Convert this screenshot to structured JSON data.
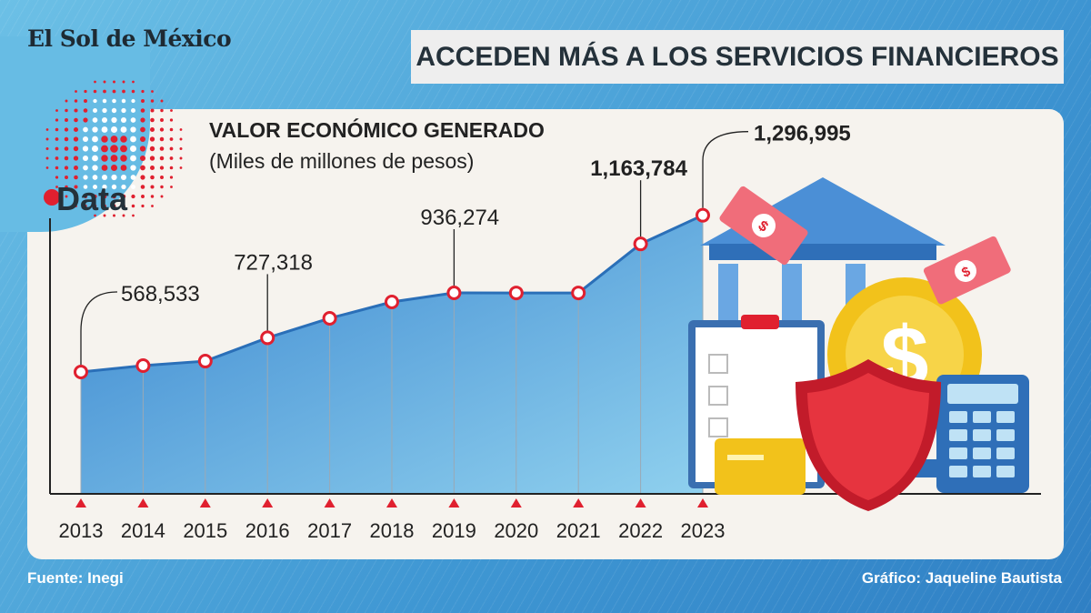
{
  "brand": "El Sol de México",
  "logo_text": "Data",
  "header": {
    "title": "ACCEDEN MÁS A LOS SERVICIOS FINANCIEROS"
  },
  "footer": {
    "source": "Fuente: Inegi",
    "credit": "Gráfico: Jaqueline Bautista"
  },
  "colors": {
    "line": "#2a6fb8",
    "area_top": "#3a86cf",
    "area_bottom": "#8fd0ee",
    "marker": "#e0202f",
    "panel": "#f6f3ee"
  },
  "chart_data": {
    "type": "area",
    "title": "VALOR ECONÓMICO GENERADO",
    "subtitle": "(Miles de millones de pesos)",
    "categories": [
      "2013",
      "2014",
      "2015",
      "2016",
      "2017",
      "2018",
      "2019",
      "2020",
      "2021",
      "2022",
      "2023"
    ],
    "values": [
      568533,
      598000,
      619000,
      727318,
      818000,
      894000,
      936274,
      936000,
      936000,
      1163784,
      1296995
    ],
    "data_labels": [
      {
        "index": 0,
        "text": "568,533",
        "bold": false
      },
      {
        "index": 3,
        "text": "727,318",
        "bold": false
      },
      {
        "index": 6,
        "text": "936,274",
        "bold": false
      },
      {
        "index": 9,
        "text": "1,163,784",
        "bold": true
      },
      {
        "index": 10,
        "text": "1,296,995",
        "bold": true
      }
    ],
    "ylim": [
      0,
      1500000
    ],
    "grid": false,
    "legend": "none"
  },
  "illustration_icons": [
    "bank-icon",
    "banknote-icon",
    "coin-dollar-icon",
    "shield-icon",
    "calculator-icon",
    "clipboard-icon",
    "credit-card-icon"
  ]
}
